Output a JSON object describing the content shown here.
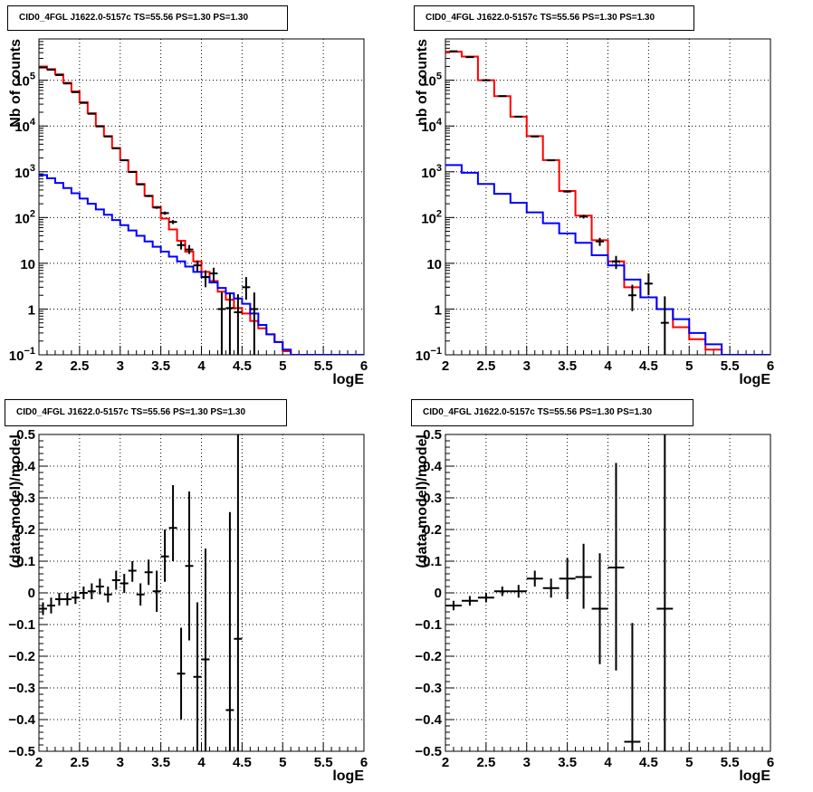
{
  "chart_data": [
    {
      "panel": "top-left",
      "type": "line",
      "title": "CID0_4FGL J1622.0-5157c TS=55.56 PS=1.30 PS=1.30",
      "xlabel": "logE",
      "ylabel": "Nb of counts",
      "xlim": [
        2,
        6
      ],
      "ylim": [
        0.1,
        800000
      ],
      "yscale": "log",
      "grid": true,
      "xticks": [
        "2",
        "2.5",
        "3",
        "3.5",
        "4",
        "4.5",
        "5",
        "5.5",
        "6"
      ],
      "yticks": [
        {
          "v": 0.1,
          "base": "10",
          "exp": "−1"
        },
        {
          "v": 1,
          "label": "1"
        },
        {
          "v": 10,
          "label": "10"
        },
        {
          "v": 100,
          "base": "10",
          "exp": "2"
        },
        {
          "v": 1000,
          "base": "10",
          "exp": "3"
        },
        {
          "v": 10000,
          "base": "10",
          "exp": "4"
        },
        {
          "v": 100000,
          "base": "10",
          "exp": "5"
        }
      ],
      "series": [
        {
          "kind": "step",
          "color": "#ff0000",
          "edges": [
            2,
            2.1,
            2.2,
            2.3,
            2.4,
            2.5,
            2.6,
            2.7,
            2.8,
            2.9,
            3.0,
            3.1,
            3.2,
            3.3,
            3.4,
            3.5,
            3.6,
            3.7,
            3.8,
            3.9,
            4.0,
            4.1,
            4.2,
            4.3,
            4.4,
            4.5,
            4.6,
            4.7,
            4.8,
            4.9,
            5.0,
            5.1,
            5.2,
            5.3,
            5.4,
            5.5,
            5.6,
            5.7,
            5.8,
            5.9,
            6.0
          ],
          "values": [
            200000,
            175000,
            135000,
            88000,
            57000,
            33000,
            19000,
            10000,
            6000,
            3300,
            1800,
            1000,
            540,
            300,
            170,
            95,
            55,
            31,
            18,
            11,
            6.5,
            4.1,
            2.4,
            1.6,
            1.05,
            0.8,
            0.55,
            0.38,
            0.28,
            0.19,
            0.12,
            0.1,
            0.1,
            0.1,
            0.1,
            0.1,
            0.1,
            0.1,
            0.1,
            0.1
          ]
        },
        {
          "kind": "step",
          "color": "#0000ff",
          "edges": [
            2,
            2.1,
            2.2,
            2.3,
            2.4,
            2.5,
            2.6,
            2.7,
            2.8,
            2.9,
            3.0,
            3.1,
            3.2,
            3.3,
            3.4,
            3.5,
            3.6,
            3.7,
            3.8,
            3.9,
            4.0,
            4.1,
            4.2,
            4.3,
            4.4,
            4.5,
            4.6,
            4.7,
            4.8,
            4.9,
            5.0,
            5.1,
            5.2,
            5.3,
            5.4,
            5.5,
            5.6,
            5.7,
            5.8,
            5.9,
            6.0
          ],
          "values": [
            850,
            720,
            570,
            440,
            340,
            260,
            200,
            150,
            115,
            88,
            68,
            52,
            40,
            30,
            23,
            18,
            14,
            11,
            8.5,
            6.5,
            5,
            3.8,
            2.9,
            2.2,
            1.7,
            1.3,
            0.8,
            0.45,
            0.28,
            0.19,
            0.13,
            0.1,
            0.1,
            0.1,
            0.1,
            0.1,
            0.1,
            0.1,
            0.1,
            0.1
          ]
        },
        {
          "kind": "points",
          "color": "#000000",
          "x": [
            2.05,
            2.15,
            2.25,
            2.35,
            2.45,
            2.55,
            2.65,
            2.75,
            2.85,
            2.95,
            3.05,
            3.15,
            3.25,
            3.35,
            3.45,
            3.55,
            3.65,
            3.75,
            3.85,
            3.95,
            4.05,
            4.15,
            4.25,
            4.35,
            4.45,
            4.55,
            4.65
          ],
          "y": [
            190000,
            170000,
            130000,
            85000,
            55000,
            32000,
            18500,
            9800,
            5900,
            3250,
            1780,
            990,
            530,
            295,
            165,
            125,
            80,
            25,
            20,
            9,
            5,
            6,
            1,
            1.05,
            0.85,
            3,
            1
          ],
          "ylo": [
            188000,
            168000,
            128000,
            84000,
            54500,
            31600,
            18200,
            9600,
            5800,
            3200,
            1740,
            960,
            510,
            280,
            155,
            115,
            72,
            20,
            16,
            6.5,
            3,
            3.8,
            0.1,
            0.1,
            0.1,
            1.6,
            0.1
          ],
          "yhi": [
            192000,
            172000,
            132000,
            86000,
            55500,
            32400,
            18800,
            10000,
            6000,
            3300,
            1820,
            1020,
            550,
            310,
            175,
            135,
            88,
            30,
            25,
            11.5,
            7,
            8,
            2.3,
            2.3,
            2.1,
            5,
            2.3
          ]
        }
      ]
    },
    {
      "panel": "top-right",
      "type": "line",
      "title": "CID0_4FGL J1622.0-5157c TS=55.56 PS=1.30 PS=1.30",
      "xlabel": "logE",
      "ylabel": "nb of counts",
      "xlim": [
        2,
        6
      ],
      "ylim": [
        0.1,
        800000
      ],
      "yscale": "log",
      "grid": true,
      "xticks": [
        "2",
        "2.5",
        "3",
        "3.5",
        "4",
        "4.5",
        "5",
        "5.5",
        "6"
      ],
      "yticks": [
        {
          "v": 0.1,
          "base": "10",
          "exp": "−1"
        },
        {
          "v": 1,
          "label": "1"
        },
        {
          "v": 10,
          "label": "10"
        },
        {
          "v": 100,
          "base": "10",
          "exp": "2"
        },
        {
          "v": 1000,
          "base": "10",
          "exp": "3"
        },
        {
          "v": 10000,
          "base": "10",
          "exp": "4"
        },
        {
          "v": 100000,
          "base": "10",
          "exp": "5"
        }
      ],
      "series": [
        {
          "kind": "step",
          "color": "#ff0000",
          "edges": [
            2,
            2.2,
            2.4,
            2.6,
            2.8,
            3.0,
            3.2,
            3.4,
            3.6,
            3.8,
            4.0,
            4.2,
            4.4,
            4.6,
            4.8,
            5.0,
            5.2,
            5.4,
            5.6,
            5.8,
            6.0
          ],
          "values": [
            420000,
            330000,
            100000,
            45000,
            16000,
            6000,
            1800,
            380,
            110,
            32,
            11,
            3,
            1.8,
            1,
            0.4,
            0.22,
            0.13,
            0.1,
            0.1,
            0.1
          ]
        },
        {
          "kind": "step",
          "color": "#0000ff",
          "edges": [
            2,
            2.2,
            2.4,
            2.6,
            2.8,
            3.0,
            3.2,
            3.4,
            3.6,
            3.8,
            4.0,
            4.2,
            4.4,
            4.6,
            4.8,
            5.0,
            5.2,
            5.4,
            5.6,
            5.8,
            6.0
          ],
          "values": [
            1400,
            950,
            540,
            330,
            210,
            130,
            75,
            45,
            28,
            15,
            9,
            4.4,
            1.8,
            1,
            0.6,
            0.3,
            0.17,
            0.1,
            0.1,
            0.1
          ]
        },
        {
          "kind": "points",
          "color": "#000000",
          "x": [
            2.1,
            2.3,
            2.5,
            2.7,
            2.9,
            3.1,
            3.3,
            3.5,
            3.7,
            3.9,
            4.1,
            4.3,
            4.5,
            4.7
          ],
          "y": [
            430000,
            320000,
            100000,
            45000,
            16000,
            5900,
            1780,
            370,
            105,
            30,
            11,
            2,
            3.6,
            0.5
          ],
          "ylo": [
            428000,
            318000,
            99000,
            44600,
            15800,
            5800,
            1730,
            350,
            95,
            24,
            7.5,
            0.9,
            2,
            0.1
          ],
          "yhi": [
            432000,
            322000,
            101000,
            45400,
            16200,
            6000,
            1830,
            390,
            115,
            36,
            14.5,
            3.4,
            6,
            1.9
          ]
        }
      ]
    },
    {
      "panel": "bottom-left",
      "type": "scatter",
      "title": "CID0_4FGL J1622.0-5157c TS=55.56 PS=1.30 PS=1.30",
      "xlabel": "logE",
      "ylabel": "(data-model)/model",
      "xlim": [
        2,
        6
      ],
      "ylim": [
        -0.5,
        0.5
      ],
      "grid": true,
      "xticks": [
        "2",
        "2.5",
        "3",
        "3.5",
        "4",
        "4.5",
        "5",
        "5.5",
        "6"
      ],
      "yticks": [
        "−0.5",
        "−0.4",
        "−0.3",
        "−0.2",
        "−0.1",
        "0",
        "0.1",
        "0.2",
        "0.3",
        "0.4",
        "0.5"
      ],
      "series": [
        {
          "kind": "points",
          "color": "#000000",
          "x": [
            2.05,
            2.15,
            2.25,
            2.35,
            2.45,
            2.55,
            2.65,
            2.75,
            2.85,
            2.95,
            3.05,
            3.15,
            3.25,
            3.35,
            3.45,
            3.55,
            3.65,
            3.75,
            3.85,
            3.95,
            4.05,
            4.35,
            4.45
          ],
          "y": [
            -0.05,
            -0.04,
            -0.02,
            -0.02,
            -0.015,
            0.0,
            0.005,
            0.02,
            -0.005,
            0.04,
            0.03,
            0.07,
            -0.005,
            0.065,
            0.005,
            0.115,
            0.205,
            -0.255,
            0.085,
            -0.265,
            -0.21,
            -0.37,
            -0.145
          ],
          "ylo": [
            -0.07,
            -0.065,
            -0.04,
            -0.04,
            -0.035,
            -0.02,
            -0.02,
            -0.005,
            -0.03,
            0.01,
            0.0,
            0.035,
            -0.04,
            0.025,
            -0.06,
            0.035,
            0.1,
            -0.4,
            -0.15,
            -0.5,
            -0.5,
            -0.5,
            -0.5
          ],
          "yhi": [
            -0.03,
            -0.015,
            0.0,
            0.0,
            0.005,
            0.02,
            0.03,
            0.045,
            0.02,
            0.07,
            0.06,
            0.1,
            0.03,
            0.105,
            0.07,
            0.2,
            0.34,
            -0.11,
            0.32,
            -0.03,
            0.14,
            0.255,
            0.5
          ],
          "xerr": 0.05
        }
      ]
    },
    {
      "panel": "bottom-right",
      "type": "scatter",
      "title": "CID0_4FGL J1622.0-5157c TS=55.56 PS=1.30 PS=1.30",
      "xlabel": "logE",
      "ylabel": "(data-model)/model",
      "xlim": [
        2,
        6
      ],
      "ylim": [
        -0.5,
        0.5
      ],
      "grid": true,
      "xticks": [
        "2",
        "2.5",
        "3",
        "3.5",
        "4",
        "4.5",
        "5",
        "5.5",
        "6"
      ],
      "yticks": [
        "−0.5",
        "−0.4",
        "−0.3",
        "−0.2",
        "−0.1",
        "0",
        "0.1",
        "0.2",
        "0.3",
        "0.4",
        "0.5"
      ],
      "series": [
        {
          "kind": "points",
          "color": "#000000",
          "x": [
            2.1,
            2.3,
            2.5,
            2.7,
            2.9,
            3.1,
            3.3,
            3.5,
            3.7,
            3.9,
            4.1,
            4.3,
            4.7
          ],
          "y": [
            -0.04,
            -0.025,
            -0.015,
            0.005,
            0.005,
            0.045,
            0.015,
            0.045,
            0.05,
            -0.05,
            0.08,
            -0.47,
            -0.05
          ],
          "ylo": [
            -0.055,
            -0.04,
            -0.03,
            -0.01,
            -0.015,
            0.02,
            -0.015,
            -0.02,
            -0.05,
            -0.225,
            -0.245,
            -0.5,
            -0.5
          ],
          "yhi": [
            -0.025,
            -0.01,
            0.0,
            0.02,
            0.025,
            0.07,
            0.045,
            0.11,
            0.155,
            0.125,
            0.41,
            -0.095,
            0.5
          ],
          "xerr": 0.1
        }
      ]
    }
  ]
}
